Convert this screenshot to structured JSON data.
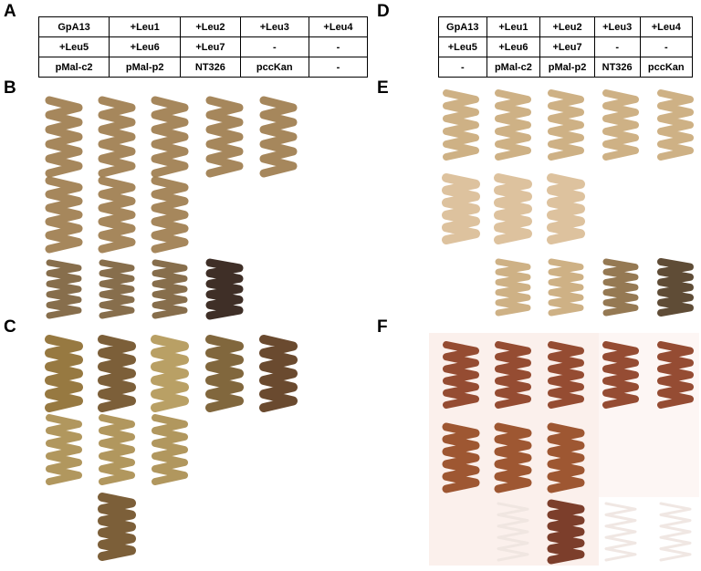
{
  "panels": {
    "a": "A",
    "b": "B",
    "c": "C",
    "d": "D",
    "e": "E",
    "f": "F"
  },
  "tables": {
    "left": {
      "rows": [
        [
          "GpA13",
          "+Leu1",
          "+Leu2",
          "+Leu3",
          "+Leu4"
        ],
        [
          "+Leu5",
          "+Leu6",
          "+Leu7",
          "-",
          "-"
        ],
        [
          "pMal-c2",
          "pMal-p2",
          "NT326",
          "pccKan",
          "-"
        ]
      ]
    },
    "right": {
      "rows": [
        [
          "GpA13",
          "+Leu1",
          "+Leu2",
          "+Leu3",
          "+Leu4"
        ],
        [
          "+Leu5",
          "+Leu6",
          "+Leu7",
          "-",
          "-"
        ],
        [
          "-",
          "pMal-c2",
          "pMal-p2",
          "NT326",
          "pccKan"
        ]
      ]
    }
  }
}
